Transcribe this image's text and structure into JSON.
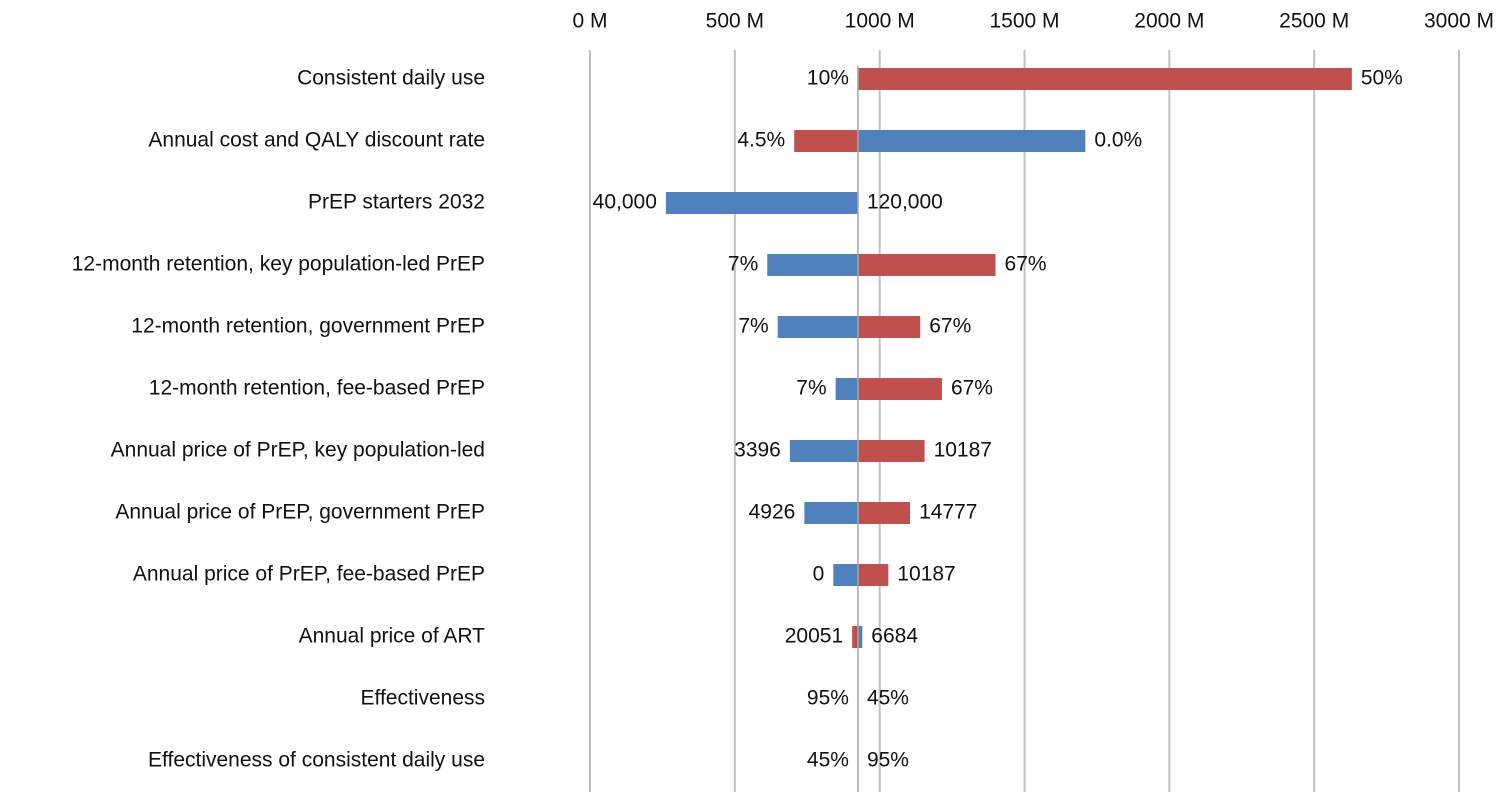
{
  "chart_data": {
    "type": "bar",
    "orientation": "horizontal",
    "variant": "tornado",
    "title": "",
    "xlabel": "",
    "ylabel": "",
    "xlim": [
      0,
      3000
    ],
    "x_ticks": [
      0,
      500,
      1000,
      1500,
      2000,
      2500,
      3000
    ],
    "x_tick_labels": [
      "0 M",
      "500 M",
      "1000 M",
      "1500 M",
      "2000 M",
      "2500 M",
      "3000 M"
    ],
    "grid": true,
    "axis_position": "top",
    "legend": "none",
    "base_value": 925,
    "colors": {
      "increase": "#c0504d",
      "decrease": "#4f81bd",
      "grid": "#bfbfbf",
      "baseline": "#a6a6a6"
    },
    "categories": [
      "Consistent daily use",
      "Annual cost and QALY discount rate",
      "PrEP starters 2032",
      "12-month retention, key population-led PrEP",
      "12-month retention, government PrEP",
      "12-month retention, fee-based PrEP",
      "Annual price of PrEP, key population-led",
      "Annual price of PrEP, government PrEP",
      "Annual price of PrEP, fee-based PrEP",
      "Annual price of ART",
      "Effectiveness",
      "Effectiveness of consistent daily use"
    ],
    "bars": [
      {
        "low_value": 925,
        "high_value": 2630,
        "left_label": "10%",
        "right_label": "50%",
        "left_color": "none",
        "right_color": "increase"
      },
      {
        "low_value": 705,
        "high_value": 1710,
        "left_label": "4.5%",
        "right_label": "0.0%",
        "left_color": "increase",
        "right_color": "decrease"
      },
      {
        "low_value": 262,
        "high_value": 925,
        "left_label": "40,000",
        "right_label": "120,000",
        "left_color": "decrease",
        "right_color": "none"
      },
      {
        "low_value": 612,
        "high_value": 1400,
        "left_label": "7%",
        "right_label": "67%",
        "left_color": "decrease",
        "right_color": "increase"
      },
      {
        "low_value": 648,
        "high_value": 1140,
        "left_label": "7%",
        "right_label": "67%",
        "left_color": "decrease",
        "right_color": "increase"
      },
      {
        "low_value": 848,
        "high_value": 1215,
        "left_label": "7%",
        "right_label": "67%",
        "left_color": "decrease",
        "right_color": "increase"
      },
      {
        "low_value": 690,
        "high_value": 1155,
        "left_label": "3396",
        "right_label": "10187",
        "left_color": "decrease",
        "right_color": "increase"
      },
      {
        "low_value": 740,
        "high_value": 1105,
        "left_label": "4926",
        "right_label": "14777",
        "left_color": "decrease",
        "right_color": "increase"
      },
      {
        "low_value": 840,
        "high_value": 1030,
        "left_label": "0",
        "right_label": "10187",
        "left_color": "decrease",
        "right_color": "increase"
      },
      {
        "low_value": 905,
        "high_value": 940,
        "left_label": "20051",
        "right_label": "6684",
        "left_color": "increase",
        "right_color": "decrease"
      },
      {
        "low_value": 925,
        "high_value": 925,
        "left_label": "95%",
        "right_label": "45%",
        "left_color": "none",
        "right_color": "none"
      },
      {
        "low_value": 925,
        "high_value": 925,
        "left_label": "45%",
        "right_label": "95%",
        "left_color": "none",
        "right_color": "none"
      }
    ]
  }
}
